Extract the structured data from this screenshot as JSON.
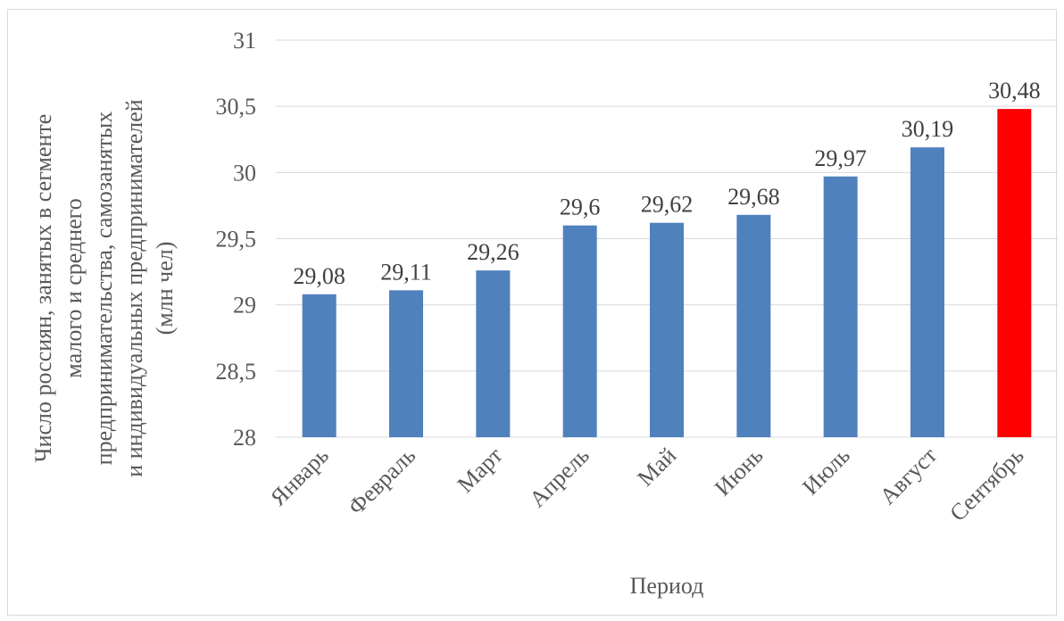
{
  "chart_data": {
    "type": "bar",
    "categories": [
      "Январь",
      "Февраль",
      "Март",
      "Апрель",
      "Май",
      "Июнь",
      "Июль",
      "Август",
      "Сентябрь"
    ],
    "values": [
      29.08,
      29.11,
      29.26,
      29.6,
      29.62,
      29.68,
      29.97,
      30.19,
      30.48
    ],
    "data_labels": [
      "29,08",
      "29,11",
      "29,26",
      "29,6",
      "29,62",
      "29,68",
      "29,97",
      "30,19",
      "30,48"
    ],
    "yticks": [
      28,
      28.5,
      29,
      29.5,
      30,
      30.5,
      31
    ],
    "ytick_labels": [
      "28",
      "28,5",
      "29",
      "29,5",
      "30",
      "30,5",
      "31"
    ],
    "ylim": [
      28,
      31
    ],
    "xlabel": "Период",
    "ylabel_lines": [
      "Число россиян, занятых в сегменте",
      "малого и среднего",
      "предпринимательства, самозанятых",
      "и индивидуальных предпринимателей",
      "(млн чел)"
    ],
    "grid": true,
    "legend": false,
    "colors": {
      "bar": "#4f81bd",
      "highlight_bar": "#ff0000",
      "grid": "#d9d9d9",
      "text": "#595959"
    },
    "highlight_index": 8
  }
}
